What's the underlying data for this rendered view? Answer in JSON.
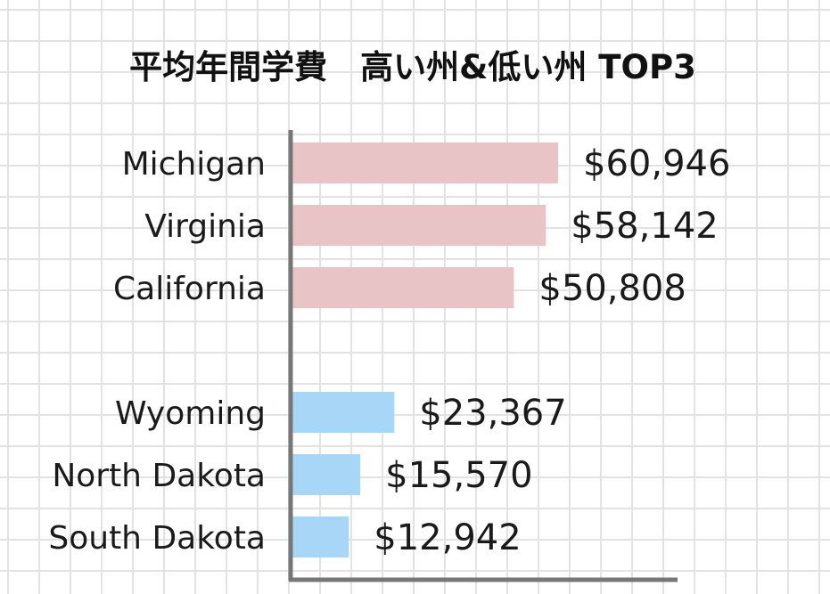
{
  "chart_data": {
    "type": "bar",
    "orientation": "horizontal",
    "title": "平均年間学費　高い州&低い州 TOP3",
    "xlabel": "",
    "ylabel": "",
    "grid": true,
    "xlim": [
      0,
      60946
    ],
    "groups": [
      {
        "color": "#e8c4c6",
        "categories": [
          "Michigan",
          "Virginia",
          "California"
        ],
        "values": [
          60946,
          58142,
          50808
        ],
        "labels": [
          "$60,946",
          "$58,142",
          "$50,808"
        ]
      },
      {
        "color": "#a8d6f7",
        "categories": [
          "Wyoming",
          "North Dakota",
          "South Dakota"
        ],
        "values": [
          23367,
          15570,
          12942
        ],
        "labels": [
          "$23,367",
          "$15,570",
          "$12,942"
        ]
      }
    ]
  },
  "colors": {
    "axis": "#777777",
    "grid": "#e2e2e2",
    "text": "#1a1a1a"
  }
}
